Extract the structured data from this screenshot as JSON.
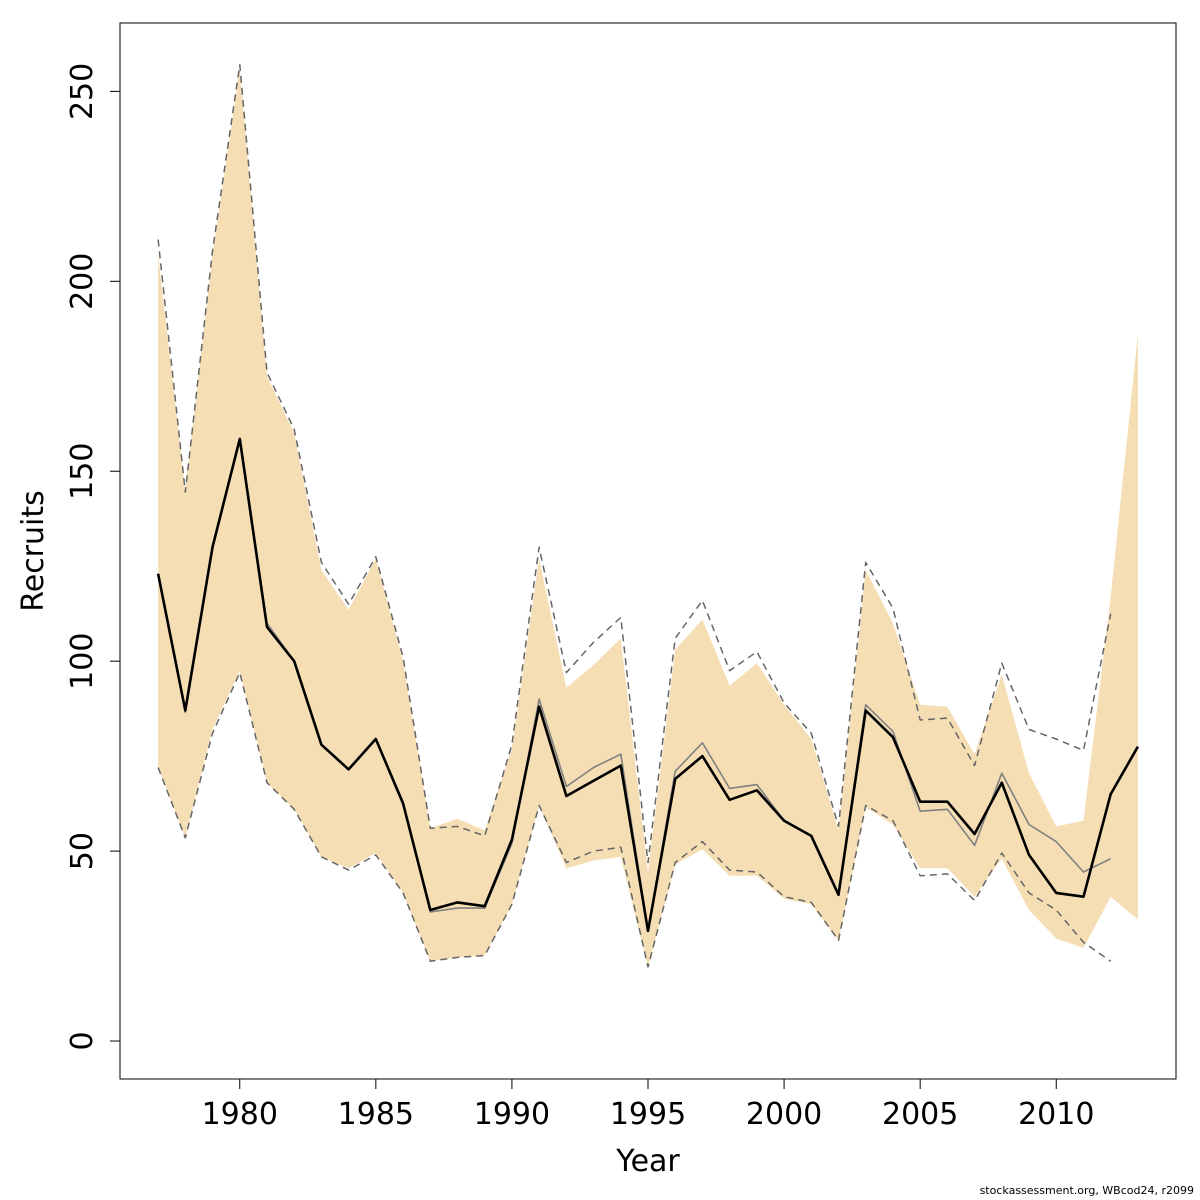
{
  "chart_data": {
    "type": "line",
    "xlabel": "Year",
    "ylabel": "Recruits",
    "xlim": [
      1975.6,
      2014.4
    ],
    "ylim": [
      -10,
      268
    ],
    "x_ticks": [
      1980,
      1985,
      1990,
      1995,
      2000,
      2005,
      2010
    ],
    "y_ticks": [
      0,
      50,
      100,
      150,
      200,
      250
    ],
    "grid": false,
    "legend": "none",
    "colors": {
      "band_fill": "#F5DEB3",
      "current_line": "#000000",
      "previous_line": "#808080",
      "previous_bounds": "#666666"
    },
    "years": [
      1977,
      1978,
      1979,
      1980,
      1981,
      1982,
      1983,
      1984,
      1985,
      1986,
      1987,
      1988,
      1989,
      1990,
      1991,
      1992,
      1993,
      1994,
      1995,
      1996,
      1997,
      1998,
      1999,
      2000,
      2001,
      2002,
      2003,
      2004,
      2005,
      2006,
      2007,
      2008,
      2009,
      2010,
      2011,
      2012,
      2013
    ],
    "series": [
      {
        "role": "current_estimate",
        "values": [
          123,
          87,
          130,
          158.5,
          109,
          100,
          78,
          71.5,
          79.5,
          62.5,
          34.5,
          36.5,
          35.5,
          53,
          88,
          64.5,
          68.5,
          72.5,
          29,
          69,
          75,
          63.5,
          66,
          58,
          54,
          38.5,
          87,
          80,
          63,
          63,
          54.5,
          68,
          49,
          39,
          38,
          65,
          77.5
        ]
      },
      {
        "role": "current_lower",
        "values": [
          72,
          53.5,
          82,
          97.5,
          68,
          61,
          48.5,
          45.5,
          49.5,
          39,
          21,
          22,
          22.5,
          36,
          62,
          45.5,
          47.5,
          48.5,
          19.5,
          46.5,
          50.5,
          43.5,
          43.5,
          37.5,
          36,
          26.5,
          61.5,
          57,
          45.5,
          45.5,
          38,
          48,
          34.5,
          27,
          24.5,
          38,
          32
        ]
      },
      {
        "role": "current_upper",
        "values": [
          207,
          145,
          207,
          256,
          175,
          160,
          124,
          113.5,
          127,
          100,
          56,
          58.5,
          55.5,
          77,
          127,
          93,
          99,
          106,
          44.5,
          103,
          111,
          93.5,
          99.5,
          88.5,
          79.5,
          55.5,
          124,
          110,
          88.5,
          88,
          75.5,
          96.5,
          70.5,
          56.5,
          58,
          117,
          186
        ]
      },
      {
        "role": "previous_estimate",
        "values": [
          123,
          86.5,
          130,
          158.5,
          110,
          100,
          78,
          71.5,
          79.5,
          63,
          34,
          35,
          35,
          52,
          90,
          67,
          72,
          75.5,
          29,
          71,
          78.5,
          66.5,
          67.5,
          58,
          54,
          38.5,
          88.5,
          81.5,
          60.5,
          61,
          51.5,
          70.5,
          57,
          52.5,
          44.5,
          48
        ]
      },
      {
        "role": "previous_lower",
        "values": [
          72,
          53.5,
          81,
          97,
          68,
          61,
          48.5,
          45,
          49,
          39,
          21,
          22,
          22.5,
          36,
          62,
          47,
          50,
          51,
          19.5,
          47,
          52.5,
          45,
          44.5,
          38,
          36.5,
          26.5,
          62,
          58,
          43.5,
          44,
          37,
          49.5,
          39,
          34.5,
          26,
          21
        ]
      },
      {
        "role": "previous_upper",
        "values": [
          211,
          144.5,
          208,
          257,
          176,
          161,
          126,
          115,
          127.5,
          101,
          56,
          56.5,
          54,
          78,
          130,
          97,
          105,
          111.5,
          47,
          106,
          116,
          97.5,
          102.5,
          89,
          81,
          56.5,
          126,
          114,
          84.5,
          85,
          72.5,
          99.5,
          82,
          79.5,
          76.5,
          112.5
        ]
      }
    ]
  },
  "credit": "stockassessment.org, WBcod24, r2099"
}
